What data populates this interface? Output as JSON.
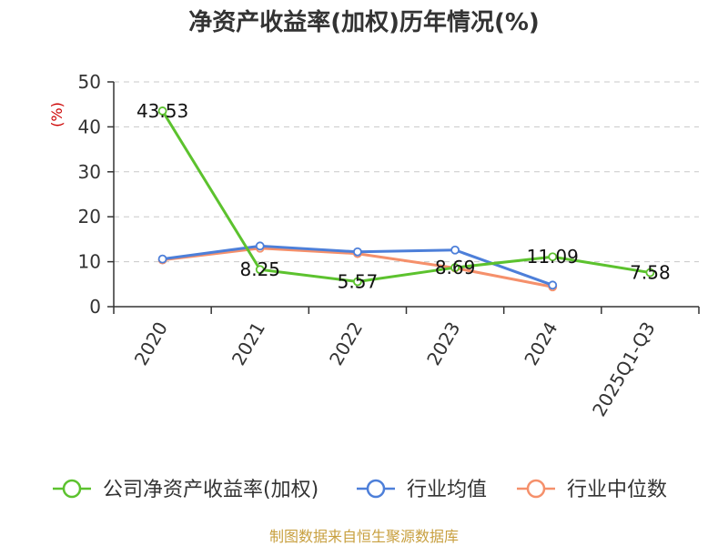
{
  "chart_data": {
    "type": "line",
    "title": "净资产收益率(加权)历年情况(%)",
    "ylabel": "(%)",
    "categories": [
      "2020",
      "2021",
      "2022",
      "2023",
      "2024",
      "2025Q1-Q3"
    ],
    "ylim": [
      0,
      50
    ],
    "yticks": [
      0,
      10,
      20,
      30,
      40,
      50
    ],
    "grid": true,
    "legend_position": "bottom",
    "series": [
      {
        "name": "公司净资产收益率(加权)",
        "color": "#5cc22e",
        "values": [
          43.53,
          8.25,
          5.57,
          8.69,
          11.09,
          7.58
        ],
        "labels": [
          "43.53",
          "8.25",
          "5.57",
          "8.69",
          "11.09",
          "7.58"
        ]
      },
      {
        "name": "行业均值",
        "color": "#4d7fd9",
        "values": [
          10.6,
          13.5,
          12.2,
          12.6,
          4.8,
          null
        ]
      },
      {
        "name": "行业中位数",
        "color": "#f5906b",
        "values": [
          10.4,
          13.0,
          11.8,
          8.6,
          4.4,
          null
        ]
      }
    ]
  },
  "source": "制图数据来自恒生聚源数据库"
}
